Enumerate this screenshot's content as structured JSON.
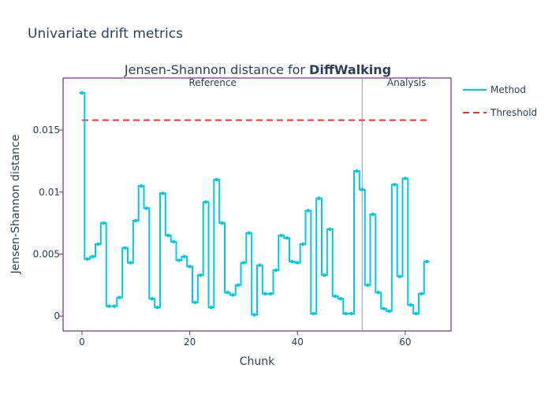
{
  "page_title": "Univariate drift metrics",
  "chart_data": {
    "type": "line",
    "title_prefix": "Jensen-Shannon distance for ",
    "title_feature": "DiffWalking",
    "xlabel": "Chunk",
    "ylabel": "Jensen-Shannon distance",
    "xlim": [
      -3.5,
      68.5
    ],
    "ylim": [
      -0.0012,
      0.0192
    ],
    "x_ticks": [
      0,
      20,
      40,
      60
    ],
    "y_ticks": [
      0,
      0.005,
      0.01,
      0.015
    ],
    "y_tick_labels": [
      "0",
      "0.005",
      "0.01",
      "0.015"
    ],
    "reference_label": "Reference",
    "analysis_label": "Analysis",
    "boundary_x": 52,
    "threshold": 0.0158,
    "threshold_x_range": [
      0,
      64.5
    ],
    "legend": {
      "method": "Method",
      "threshold": "Threshold"
    },
    "colors": {
      "method": "#00c8e5",
      "threshold": "#e5362b",
      "boundary": "#999999",
      "frame": "#5a006e"
    },
    "series": [
      {
        "name": "Method",
        "x": [
          0,
          1,
          2,
          3,
          4,
          5,
          6,
          7,
          8,
          9,
          10,
          11,
          12,
          13,
          14,
          15,
          16,
          17,
          18,
          19,
          20,
          21,
          22,
          23,
          24,
          25,
          26,
          27,
          28,
          29,
          30,
          31,
          32,
          33,
          34,
          35,
          36,
          37,
          38,
          39,
          40,
          41,
          42,
          43,
          44,
          45,
          46,
          47,
          48,
          49,
          50,
          51,
          52,
          53,
          54,
          55,
          56,
          57,
          58,
          59,
          60,
          61,
          62,
          63,
          64
        ],
        "values": [
          0.018,
          0.0046,
          0.0048,
          0.0058,
          0.0075,
          0.0008,
          0.0008,
          0.0015,
          0.0055,
          0.0043,
          0.0077,
          0.0105,
          0.0087,
          0.0014,
          0.0007,
          0.0099,
          0.0065,
          0.006,
          0.0045,
          0.0048,
          0.004,
          0.0011,
          0.0033,
          0.0092,
          0.0007,
          0.011,
          0.0075,
          0.0019,
          0.0017,
          0.0025,
          0.0043,
          0.0067,
          0.0001,
          0.0041,
          0.0018,
          0.0018,
          0.0037,
          0.0065,
          0.0063,
          0.0044,
          0.0043,
          0.0058,
          0.0085,
          0.0002,
          0.0095,
          0.0033,
          0.007,
          0.0016,
          0.0014,
          0.0002,
          0.0002,
          0.0117,
          0.0102,
          0.0025,
          0.0082,
          0.0019,
          0.0006,
          0.0004,
          0.0106,
          0.0032,
          0.0111,
          0.0009,
          0.0002,
          0.0018,
          0.0044
        ]
      }
    ]
  }
}
